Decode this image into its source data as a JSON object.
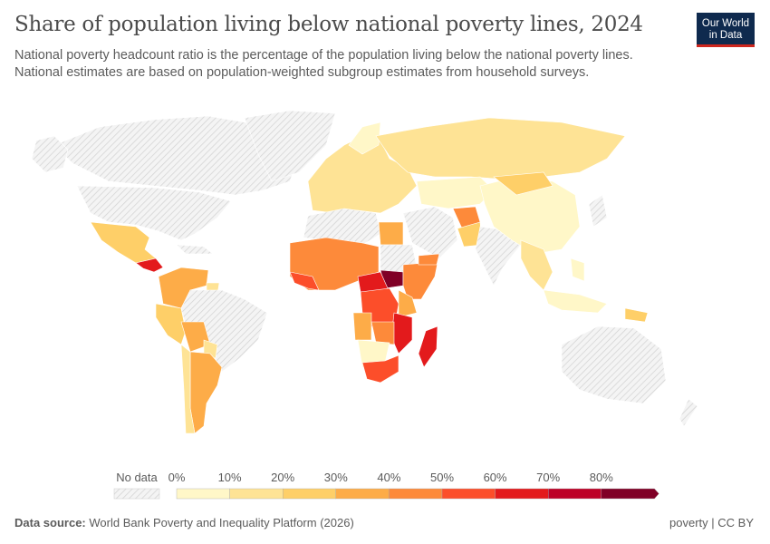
{
  "header": {
    "title": "Share of population living below national poverty lines, 2024",
    "subtitle": "National poverty headcount ratio is the percentage of the population living below the national poverty lines. National estimates are based on population-weighted subgroup estimates from household surveys.",
    "logo_text": "Our World in Data"
  },
  "chart_data": {
    "type": "map",
    "title": "Share of population living below national poverty lines, 2024",
    "legend": {
      "no_data_label": "No data",
      "tick_labels": [
        "0%",
        "10%",
        "20%",
        "30%",
        "40%",
        "50%",
        "60%",
        "70%",
        "80%"
      ],
      "bins": [
        {
          "from": 0,
          "to": 10,
          "color": "#fff7c8"
        },
        {
          "from": 10,
          "to": 20,
          "color": "#fee395"
        },
        {
          "from": 20,
          "to": 30,
          "color": "#fecf68"
        },
        {
          "from": 30,
          "to": 40,
          "color": "#fdac48"
        },
        {
          "from": 40,
          "to": 50,
          "color": "#fd8a3a"
        },
        {
          "from": 50,
          "to": 60,
          "color": "#fc4e2a"
        },
        {
          "from": 60,
          "to": 70,
          "color": "#e31a1c"
        },
        {
          "from": 70,
          "to": 80,
          "color": "#bd0026"
        },
        {
          "from": 80,
          "to": null,
          "color": "#800026"
        }
      ],
      "no_data_color": "#e8e8e8"
    }
  },
  "footer": {
    "source_label": "Data source:",
    "source": "World Bank Poverty and Inequality Platform (2026)",
    "license": "poverty | CC BY"
  }
}
